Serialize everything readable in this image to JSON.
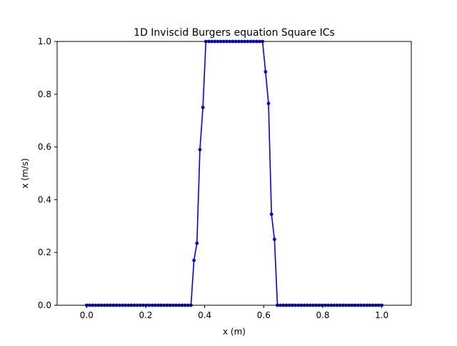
{
  "chart_data": {
    "type": "line",
    "title": "1D Inviscid Burgers equation Square ICs",
    "xlabel": "x (m)",
    "ylabel": "x (m/s)",
    "xlim": [
      -0.1,
      1.1
    ],
    "ylim": [
      0.0,
      1.0
    ],
    "xticks": [
      "0.0",
      "0.2",
      "0.4",
      "0.6",
      "0.8",
      "1.0"
    ],
    "yticks": [
      "0.0",
      "0.2",
      "0.4",
      "0.6",
      "0.8",
      "1.0"
    ],
    "grid": false,
    "series": [
      {
        "color": "#0000ff",
        "marker": "dot",
        "x": [
          0.0,
          0.0101,
          0.0202,
          0.0303,
          0.0404,
          0.0505,
          0.0606,
          0.0707,
          0.0808,
          0.0909,
          0.101,
          0.1111,
          0.1212,
          0.1313,
          0.1414,
          0.1515,
          0.1616,
          0.1717,
          0.1818,
          0.1919,
          0.202,
          0.2121,
          0.2222,
          0.2323,
          0.2424,
          0.2525,
          0.2626,
          0.2727,
          0.2828,
          0.2929,
          0.303,
          0.3131,
          0.3232,
          0.3333,
          0.3434,
          0.3535,
          0.3636,
          0.3737,
          0.3838,
          0.3939,
          0.404,
          0.4141,
          0.4242,
          0.4343,
          0.4444,
          0.4545,
          0.4646,
          0.4747,
          0.4848,
          0.4949,
          0.5051,
          0.5152,
          0.5253,
          0.5354,
          0.5455,
          0.5556,
          0.5657,
          0.5758,
          0.5859,
          0.596,
          0.6061,
          0.6162,
          0.6263,
          0.6364,
          0.6465,
          0.6566,
          0.6667,
          0.6768,
          0.6869,
          0.697,
          0.7071,
          0.7172,
          0.7273,
          0.7374,
          0.7475,
          0.7576,
          0.7677,
          0.7778,
          0.7879,
          0.798,
          0.8081,
          0.8182,
          0.8283,
          0.8384,
          0.8485,
          0.8586,
          0.8687,
          0.8788,
          0.8889,
          0.899,
          0.9091,
          0.9192,
          0.9293,
          0.9394,
          0.9495,
          0.9596,
          0.9697,
          0.9798,
          0.9899,
          1.0
        ],
        "y": [
          0,
          0,
          0,
          0,
          0,
          0,
          0,
          0,
          0,
          0,
          0,
          0,
          0,
          0,
          0,
          0,
          0,
          0,
          0,
          0,
          0,
          0,
          0,
          0,
          0,
          0,
          0,
          0,
          0,
          0,
          0,
          0,
          0,
          0,
          0,
          0,
          0.17,
          0.235,
          0.59,
          0.75,
          1.0,
          1.0,
          1.0,
          1.0,
          1.0,
          1.0,
          1.0,
          1.0,
          1.0,
          1.0,
          1.0,
          1.0,
          1.0,
          1.0,
          1.0,
          1.0,
          1.0,
          1.0,
          1.0,
          1.0,
          0.885,
          0.765,
          0.345,
          0.25,
          0,
          0,
          0,
          0,
          0,
          0,
          0,
          0,
          0,
          0,
          0,
          0,
          0,
          0,
          0,
          0,
          0,
          0,
          0,
          0,
          0,
          0,
          0,
          0,
          0,
          0,
          0,
          0,
          0,
          0,
          0,
          0,
          0,
          0,
          0,
          0
        ]
      }
    ]
  }
}
